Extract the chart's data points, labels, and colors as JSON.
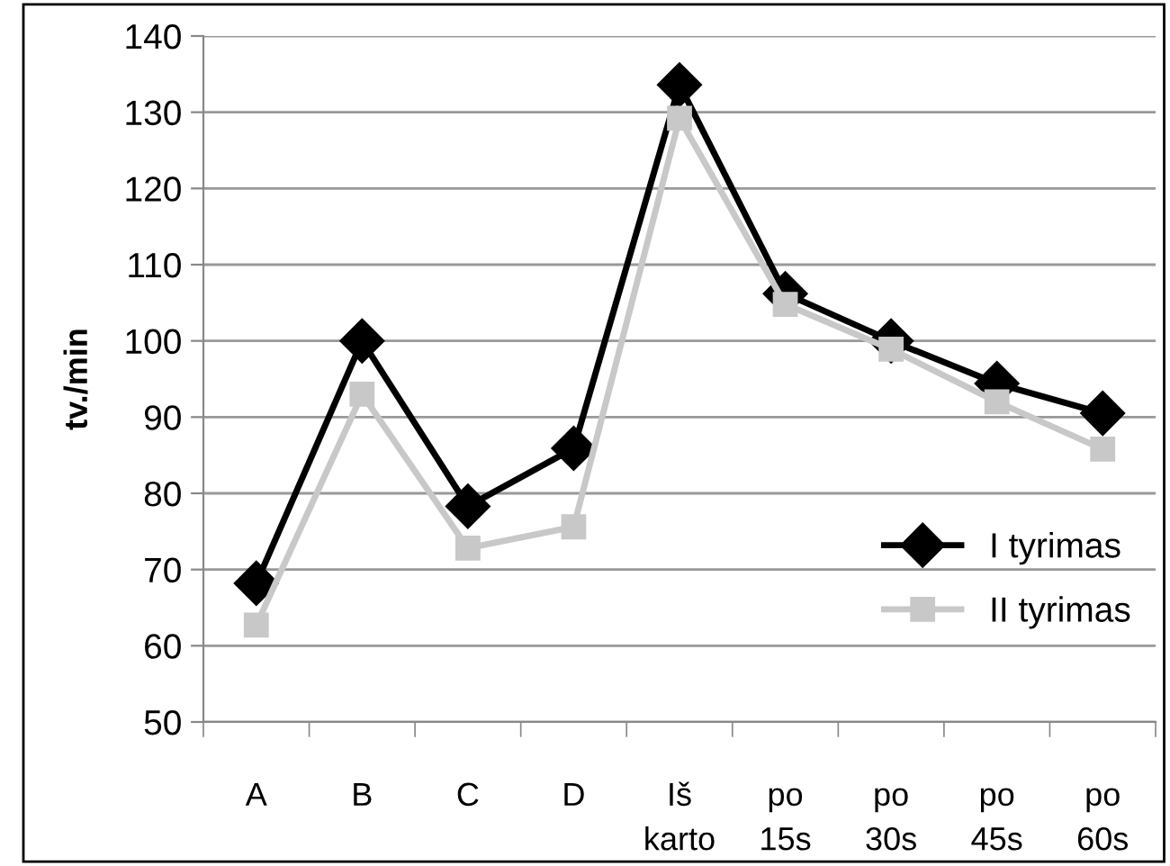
{
  "chart_data": {
    "type": "line",
    "ylabel": "tv./min",
    "categories": [
      "A",
      "B",
      "C",
      "D",
      "Iš karto",
      "po 15s",
      "po 30s",
      "po 45s",
      "po 60s"
    ],
    "series": [
      {
        "name": "I tyrimas",
        "color": "#000000",
        "marker": "diamond",
        "values": [
          68.2,
          100,
          78.3,
          85.9,
          133.6,
          106.2,
          100,
          94.4,
          90.5
        ]
      },
      {
        "name": "II tyrimas",
        "color": "#c8c8c8",
        "marker": "square",
        "values": [
          62.7,
          93,
          72.8,
          75.6,
          129.2,
          104.8,
          98.9,
          92,
          85.8
        ]
      }
    ],
    "ylim": [
      50,
      140
    ],
    "yticks": [
      50,
      60,
      70,
      80,
      90,
      100,
      110,
      120,
      130,
      140
    ],
    "grid": "y",
    "legend": "right",
    "line_style": "solid"
  }
}
